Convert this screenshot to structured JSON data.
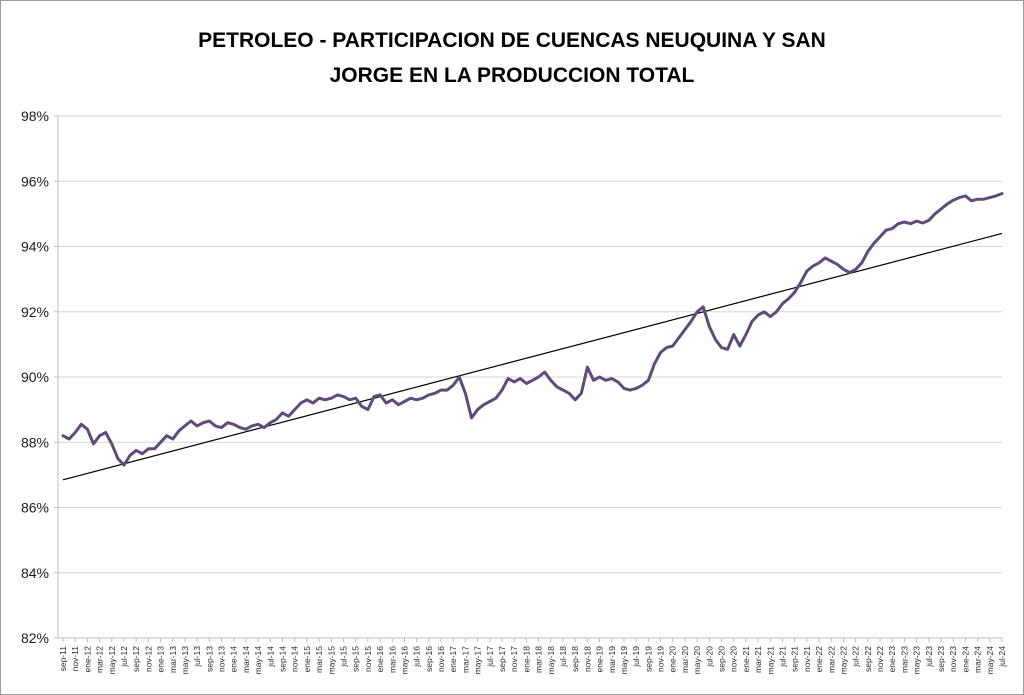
{
  "chart_data": {
    "type": "line",
    "title": "PETROLEO - PARTICIPACION DE CUENCAS NEUQUINA Y SAN JORGE EN LA PRODUCCION TOTAL",
    "title_lines": [
      "PETROLEO - PARTICIPACION DE CUENCAS NEUQUINA Y SAN",
      "JORGE EN LA PRODUCCION TOTAL"
    ],
    "xlabel": "",
    "ylabel": "",
    "legend": false,
    "grid": true,
    "ylim_pct": [
      82,
      98
    ],
    "y_tick_step_pct": 2,
    "y_tick_labels": [
      "98%",
      "96%",
      "94%",
      "92%",
      "90%",
      "88%",
      "86%",
      "84%",
      "82%"
    ],
    "x_tick_interval_months": 2,
    "x_tick_labels": [
      "sep-11",
      "nov-11",
      "ene-12",
      "mar-12",
      "may-12",
      "jul-12",
      "sep-12",
      "nov-12",
      "ene-13",
      "mar-13",
      "may-13",
      "jul-13",
      "sep-13",
      "nov-13",
      "ene-14",
      "mar-14",
      "may-14",
      "jul-14",
      "sep-14",
      "nov-14",
      "ene-15",
      "mar-15",
      "may-15",
      "jul-15",
      "sep-15",
      "nov-15",
      "ene-16",
      "mar-16",
      "may-16",
      "jul-16",
      "sep-16",
      "nov-16",
      "ene-17",
      "mar-17",
      "may-17",
      "jul-17",
      "sep-17",
      "nov-17",
      "ene-18",
      "mar-18",
      "may-18",
      "jul-18",
      "sep-18",
      "nov-18",
      "ene-19",
      "mar-19",
      "may-19",
      "jul-19",
      "sep-19",
      "nov-19",
      "ene-20",
      "mar-20",
      "may-20",
      "jul-20",
      "sep-20",
      "nov-20",
      "ene-21",
      "mar-21",
      "may-21",
      "jul-21",
      "sep-21",
      "nov-21",
      "ene-22",
      "mar-22",
      "may-22",
      "jul-22",
      "sep-22",
      "nov-22",
      "ene-23",
      "mar-23",
      "may-23",
      "jul-23",
      "sep-23",
      "nov-23",
      "ene-24",
      "mar-24",
      "may-24",
      "jul-24"
    ],
    "series": [
      {
        "name": "participacion-cuencas",
        "color": "#604A7B",
        "stroke_width": 3,
        "start_month": "sep-11",
        "end_month": "jul-24",
        "monthly_values_pct": [
          88.2,
          88.1,
          88.3,
          88.55,
          88.4,
          87.95,
          88.2,
          88.3,
          87.95,
          87.5,
          87.3,
          87.6,
          87.75,
          87.65,
          87.8,
          87.8,
          88.0,
          88.2,
          88.1,
          88.35,
          88.5,
          88.65,
          88.5,
          88.6,
          88.65,
          88.5,
          88.45,
          88.6,
          88.55,
          88.45,
          88.4,
          88.5,
          88.55,
          88.45,
          88.6,
          88.7,
          88.9,
          88.8,
          89.0,
          89.2,
          89.3,
          89.2,
          89.35,
          89.3,
          89.35,
          89.45,
          89.4,
          89.3,
          89.35,
          89.1,
          89.0,
          89.4,
          89.45,
          89.2,
          89.3,
          89.15,
          89.25,
          89.35,
          89.3,
          89.35,
          89.45,
          89.5,
          89.6,
          89.6,
          89.75,
          90.0,
          89.5,
          88.75,
          89.0,
          89.15,
          89.25,
          89.35,
          89.6,
          89.95,
          89.85,
          89.95,
          89.8,
          89.9,
          90.0,
          90.15,
          89.9,
          89.7,
          89.6,
          89.5,
          89.3,
          89.5,
          90.3,
          89.9,
          90.0,
          89.9,
          89.95,
          89.85,
          89.65,
          89.6,
          89.65,
          89.75,
          89.9,
          90.4,
          90.75,
          90.9,
          90.95,
          91.2,
          91.45,
          91.7,
          92.0,
          92.15,
          91.55,
          91.15,
          90.9,
          90.85,
          91.3,
          90.95,
          91.3,
          91.7,
          91.9,
          92.0,
          91.85,
          92.0,
          92.25,
          92.4,
          92.6,
          92.9,
          93.25,
          93.4,
          93.5,
          93.65,
          93.55,
          93.45,
          93.3,
          93.2,
          93.3,
          93.5,
          93.85,
          94.1,
          94.3,
          94.5,
          94.55,
          94.7,
          94.75,
          94.7,
          94.78,
          94.72,
          94.8,
          95.0,
          95.15,
          95.3,
          95.42,
          95.5,
          95.55,
          95.4,
          95.45,
          95.45,
          95.5,
          95.55,
          95.62
        ]
      },
      {
        "name": "trend-line",
        "type": "linear-trend",
        "color": "#000000",
        "stroke_width": 1.2,
        "start_pct": 86.85,
        "end_pct": 94.4
      }
    ]
  }
}
